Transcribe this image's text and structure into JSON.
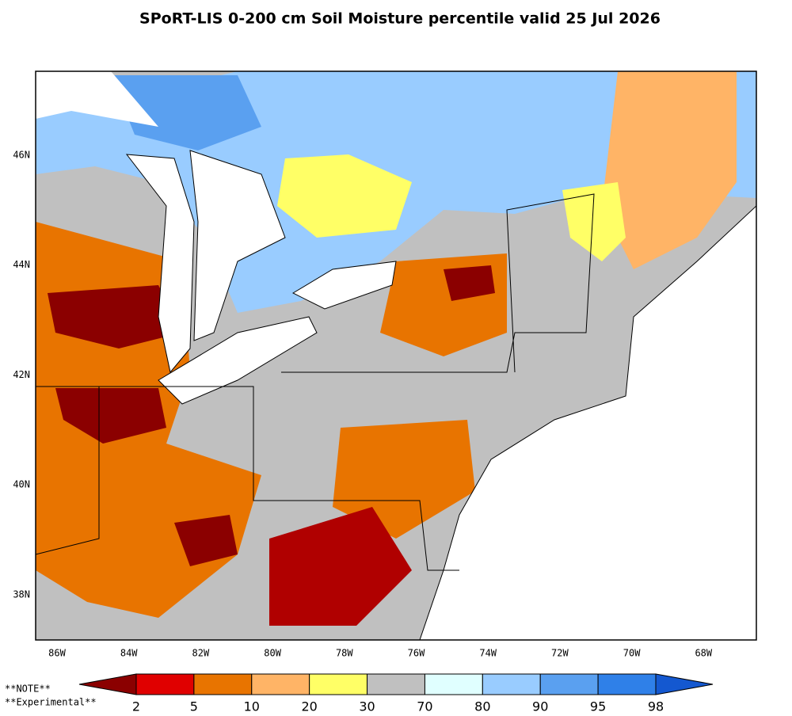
{
  "title": "SPoRT-LIS 0-200 cm Soil Moisture percentile valid 25 Jul 2026",
  "map": {
    "lat_labels": [
      "46N",
      "44N",
      "42N",
      "40N",
      "38N"
    ],
    "lon_labels": [
      "86W",
      "84W",
      "82W",
      "80W",
      "78W",
      "76W",
      "74W",
      "72W",
      "70W",
      "68W"
    ]
  },
  "notes": [
    "**NOTE**",
    "**Experimental**"
  ],
  "colorbar": {
    "colors": [
      "#8b0000",
      "#e00000",
      "#e87400",
      "#ffb466",
      "#ffff66",
      "#c0c0c0",
      "#e0ffff",
      "#99ccff",
      "#5aa0f0",
      "#2f80e8",
      "#1458d0"
    ],
    "labels": [
      2,
      5,
      10,
      20,
      30,
      70,
      80,
      90,
      95,
      98
    ]
  }
}
